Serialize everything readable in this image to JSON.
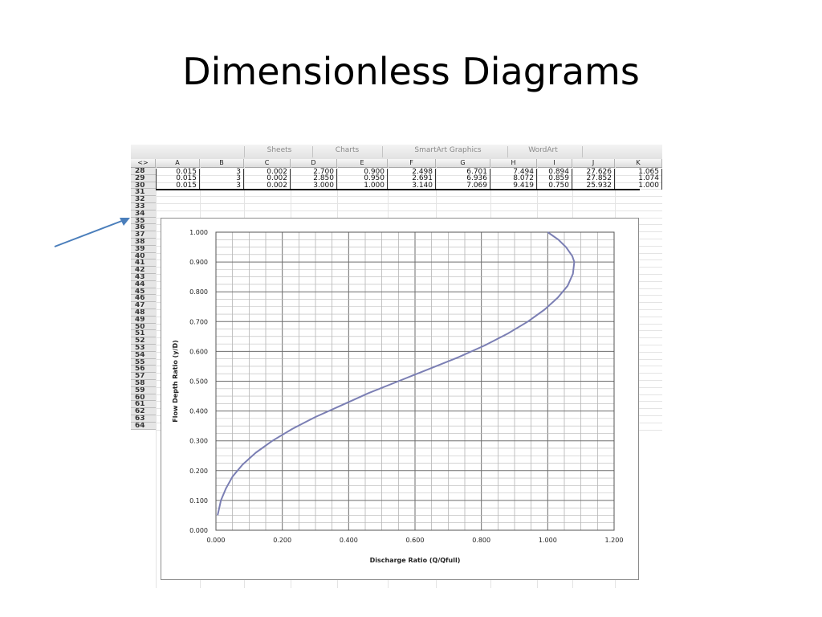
{
  "slide": {
    "title": "Dimensionless Diagrams"
  },
  "ribbon": {
    "tabs": [
      "Sheets",
      "Charts",
      "SmartArt Graphics",
      "WordArt"
    ]
  },
  "sheet": {
    "corner_label": "<>",
    "columns": [
      "A",
      "B",
      "C",
      "D",
      "E",
      "F",
      "G",
      "H",
      "I",
      "J",
      "K"
    ],
    "data_rows": [
      {
        "row": "28",
        "cells": [
          "0.015",
          "3",
          "0.002",
          "2.700",
          "0.900",
          "2.498",
          "6.701",
          "7.494",
          "0.894",
          "27.626",
          "1.065"
        ]
      },
      {
        "row": "29",
        "cells": [
          "0.015",
          "3",
          "0.002",
          "2.850",
          "0.950",
          "2.691",
          "6.936",
          "8.072",
          "0.859",
          "27.852",
          "1.074"
        ]
      },
      {
        "row": "30",
        "cells": [
          "0.015",
          "3",
          "0.002",
          "3.000",
          "1.000",
          "3.140",
          "7.069",
          "9.419",
          "0.750",
          "25.932",
          "1.000"
        ]
      }
    ],
    "row_numbers": [
      "31",
      "32",
      "33",
      "34",
      "35",
      "36",
      "37",
      "38",
      "39",
      "40",
      "41",
      "42",
      "43",
      "44",
      "45",
      "46",
      "47",
      "48",
      "49",
      "50",
      "51",
      "52",
      "53",
      "54",
      "55",
      "56",
      "57",
      "58",
      "59",
      "60",
      "61",
      "62",
      "63",
      "64"
    ]
  },
  "chart_data": {
    "type": "line",
    "title": "",
    "xlabel": "Discharge Ratio (Q/Qfull)",
    "ylabel": "Flow Depth Ratio (y/D)",
    "xlim": [
      0,
      1.2
    ],
    "ylim": [
      0,
      1.0
    ],
    "x_ticks": [
      "0.000",
      "0.200",
      "0.400",
      "0.600",
      "0.800",
      "1.000",
      "1.200"
    ],
    "y_ticks": [
      "0.000",
      "0.100",
      "0.200",
      "0.300",
      "0.400",
      "0.500",
      "0.600",
      "0.700",
      "0.800",
      "0.900",
      "1.000"
    ],
    "grid": true,
    "legend": "none",
    "line_color": "#7b7fb4",
    "series": [
      {
        "x": [
          0.005,
          0.015,
          0.03,
          0.05,
          0.08,
          0.12,
          0.17,
          0.23,
          0.3,
          0.38,
          0.46,
          0.55,
          0.64,
          0.73,
          0.81,
          0.88,
          0.94,
          0.99,
          1.03,
          1.06,
          1.076,
          1.08,
          1.074,
          1.055,
          1.032,
          1.0
        ],
        "y": [
          0.05,
          0.1,
          0.14,
          0.18,
          0.22,
          0.26,
          0.3,
          0.34,
          0.38,
          0.42,
          0.46,
          0.5,
          0.54,
          0.58,
          0.62,
          0.66,
          0.7,
          0.74,
          0.78,
          0.82,
          0.86,
          0.9,
          0.92,
          0.95,
          0.975,
          1.0
        ]
      }
    ]
  }
}
